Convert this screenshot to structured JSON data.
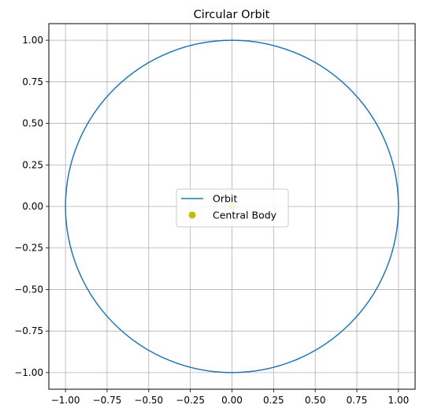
{
  "chart_data": {
    "type": "line",
    "title": "Circular Orbit",
    "xlabel": "",
    "ylabel": "",
    "xlim": [
      -1.1,
      1.1
    ],
    "ylim": [
      -1.1,
      1.1
    ],
    "x_ticks": [
      -1.0,
      -0.75,
      -0.5,
      -0.25,
      0.0,
      0.25,
      0.5,
      0.75,
      1.0
    ],
    "y_ticks": [
      -1.0,
      -0.75,
      -0.5,
      -0.25,
      0.0,
      0.25,
      0.5,
      0.75,
      1.0
    ],
    "x_tick_labels": [
      "−1.00",
      "−0.75",
      "−0.50",
      "−0.25",
      "0.00",
      "0.25",
      "0.50",
      "0.75",
      "1.00"
    ],
    "y_tick_labels": [
      "−1.00",
      "−0.75",
      "−0.50",
      "−0.25",
      "0.00",
      "0.25",
      "0.50",
      "0.75",
      "1.00"
    ],
    "grid": true,
    "legend_placement": "center",
    "series": [
      {
        "name": "Orbit",
        "kind": "line",
        "color": "#1f77b4",
        "shape": "circle",
        "center": [
          0,
          0
        ],
        "radius": 1.0
      },
      {
        "name": "Central Body",
        "kind": "point",
        "color": "#bfbf00",
        "x": [
          0.0
        ],
        "y": [
          0.0
        ]
      }
    ]
  }
}
